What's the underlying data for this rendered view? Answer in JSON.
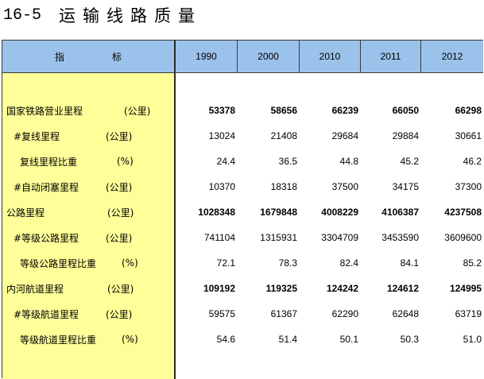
{
  "title": {
    "number": "16-5",
    "text": "运输线路质量"
  },
  "header": {
    "indicator_a": "指",
    "indicator_b": "标",
    "years": [
      "1990",
      "2000",
      "2010",
      "2011",
      "2012"
    ]
  },
  "rows": [
    {
      "label": "国家铁路营业里程",
      "unit": "(公里)",
      "values": [
        "53378",
        "58656",
        "66239",
        "66050",
        "66298"
      ],
      "bold": true
    },
    {
      "label": "#复线里程",
      "unit": "(公里)",
      "values": [
        "13024",
        "21408",
        "29684",
        "29884",
        "30661"
      ],
      "bold": false
    },
    {
      "label": "复线里程比重",
      "unit": "(%)",
      "values": [
        "24.4",
        "36.5",
        "44.8",
        "45.2",
        "46.2"
      ],
      "bold": false
    },
    {
      "label": "#自动闭塞里程",
      "unit": "(公里)",
      "values": [
        "10370",
        "18318",
        "37500",
        "34175",
        "37300"
      ],
      "bold": false
    },
    {
      "label": "公路里程",
      "unit": "(公里)",
      "values": [
        "1028348",
        "1679848",
        "4008229",
        "4106387",
        "4237508"
      ],
      "bold": true
    },
    {
      "label": "#等级公路里程",
      "unit": "(公里)",
      "values": [
        "741104",
        "1315931",
        "3304709",
        "3453590",
        "3609600"
      ],
      "bold": false
    },
    {
      "label": "等级公路里程比重",
      "unit": "(%)",
      "values": [
        "72.1",
        "78.3",
        "82.4",
        "84.1",
        "85.2"
      ],
      "bold": false
    },
    {
      "label": "内河航道里程",
      "unit": "(公里)",
      "values": [
        "109192",
        "119325",
        "124242",
        "124612",
        "124995"
      ],
      "bold": true
    },
    {
      "label": "#等级航道里程",
      "unit": "(公里)",
      "values": [
        "59575",
        "61367",
        "62290",
        "62648",
        "63719"
      ],
      "bold": false
    },
    {
      "label": "等级航道里程比重",
      "unit": "(%)",
      "values": [
        "54.6",
        "51.4",
        "50.1",
        "50.3",
        "51.0"
      ],
      "bold": false
    }
  ]
}
